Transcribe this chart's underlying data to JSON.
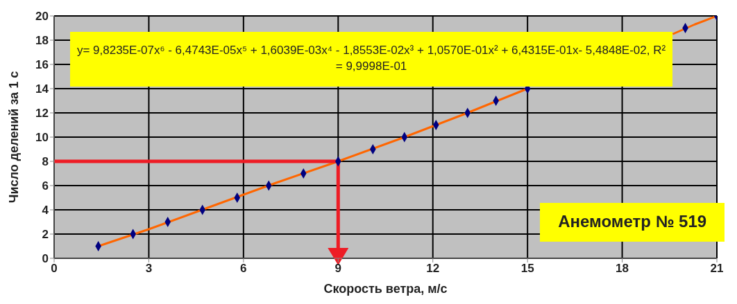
{
  "chart_data": {
    "type": "scatter",
    "xlabel": "Скорость ветра, м/с",
    "ylabel": "Число делений за 1 с",
    "x": [
      1.4,
      2.5,
      3.6,
      4.7,
      5.8,
      6.8,
      7.9,
      9,
      10.1,
      11.1,
      12.1,
      13.1,
      14,
      15,
      20,
      21
    ],
    "series": [
      {
        "color": "#000080",
        "marker": "diamond",
        "values": [
          1,
          2,
          3,
          4,
          5,
          6,
          7,
          8,
          9,
          10,
          11,
          12,
          13,
          14,
          19,
          20
        ]
      },
      {
        "type": "line",
        "color": "#ff6600",
        "marker": "none",
        "line_style": "solid",
        "x": [
          1.4,
          3,
          5,
          7,
          9,
          11,
          13,
          15,
          15.4,
          19.6,
          20.3,
          21
        ],
        "values": [
          1,
          2.4,
          4.3,
          6.2,
          8,
          9.9,
          11.9,
          14,
          null,
          18.5,
          19.3,
          20
        ]
      }
    ],
    "xlim": [
      0,
      21
    ],
    "xticks": [
      0,
      3,
      6,
      9,
      12,
      15,
      18,
      21
    ],
    "ylim": [
      0,
      20
    ],
    "yticks": [
      0,
      2,
      4,
      6,
      8,
      10,
      12,
      14,
      16,
      18,
      20
    ],
    "grid": true,
    "legend": false,
    "ref_lines": [
      {
        "axis": "y",
        "value": 8,
        "color": "#ee1c25"
      },
      {
        "axis": "x",
        "value": 9,
        "color": "#ee1c25"
      }
    ],
    "annotations": [
      "y= 9,8235E-07x⁶ - 6,4743E-05x⁵ + 1,6039E-03x⁴ - 1,8553E-02x³ + 1,0570E-01x² + 6,4315E-01x- 5,4848E-02, R² = 9,9998E-01",
      "Анемометр № 519"
    ]
  }
}
